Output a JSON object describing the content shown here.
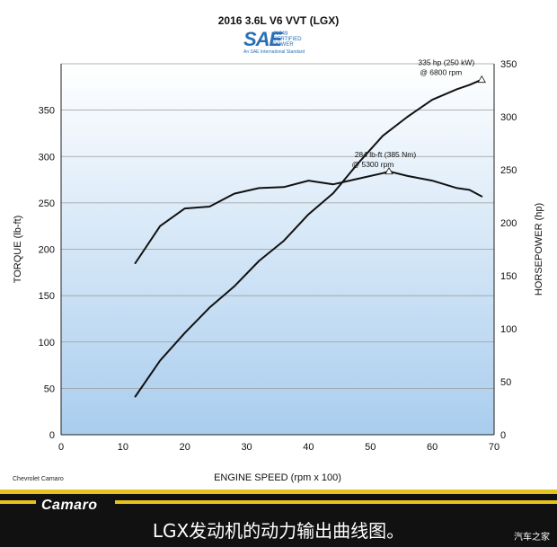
{
  "header": {
    "title": "2016 3.6L V6 VVT (LGX)",
    "sae_logo": {
      "mark": "SAE",
      "line1": "J1349",
      "line2": "CERTIFIED",
      "line3": "POWER",
      "subline": "An SAE International Standard",
      "color": "#2a6fb5"
    }
  },
  "footnote": "Chevrolet Camaro",
  "banner": {
    "brand": "Camaro",
    "caption": "LGX发动机的动力输出曲线图。",
    "watermark": "汽车之家",
    "accent_color": "#e6c31b"
  },
  "chart_data": {
    "type": "line",
    "xlabel": "ENGINE SPEED (rpm x 100)",
    "ylabel_left": "TORQUE (lb-ft)",
    "ylabel_right": "HORSEPOWER (hp)",
    "xlim": [
      0,
      70
    ],
    "ylim_left": [
      0,
      400
    ],
    "ylim_right": [
      0,
      350
    ],
    "x_ticks": [
      0,
      10,
      20,
      30,
      40,
      50,
      60,
      70
    ],
    "y_left_ticks": [
      0,
      50,
      100,
      150,
      200,
      250,
      300,
      350
    ],
    "y_right_ticks": [
      0,
      50,
      100,
      150,
      200,
      250,
      300,
      350
    ],
    "background_gradient": [
      "#ffffff",
      "#a9cdee"
    ],
    "grid": "horizontal",
    "series": [
      {
        "key": "torque",
        "axis": "left",
        "x": [
          12,
          16,
          20,
          24,
          28,
          32,
          36,
          40,
          44,
          48,
          52,
          53,
          56,
          60,
          64,
          66,
          68
        ],
        "y": [
          185,
          225,
          244,
          246,
          260,
          266,
          267,
          274,
          270,
          276,
          282,
          284,
          279,
          274,
          266,
          264,
          257
        ]
      },
      {
        "key": "horsepower",
        "axis": "right",
        "x": [
          12,
          16,
          20,
          24,
          28,
          32,
          36,
          40,
          44,
          48,
          52,
          56,
          60,
          64,
          66,
          68
        ],
        "y": [
          36,
          70,
          96,
          120,
          140,
          164,
          183,
          208,
          228,
          256,
          282,
          300,
          316,
          326,
          330,
          335
        ]
      }
    ],
    "annotations": [
      {
        "series": "horsepower",
        "x": 68,
        "y": 335,
        "axis": "right",
        "line1": "335 hp (250 kW)",
        "line2": "@ 6800 rpm"
      },
      {
        "series": "torque",
        "x": 53,
        "y": 284,
        "axis": "left",
        "line1": "284 lb-ft (385 Nm)",
        "line2": "@ 5300 rpm"
      }
    ]
  }
}
